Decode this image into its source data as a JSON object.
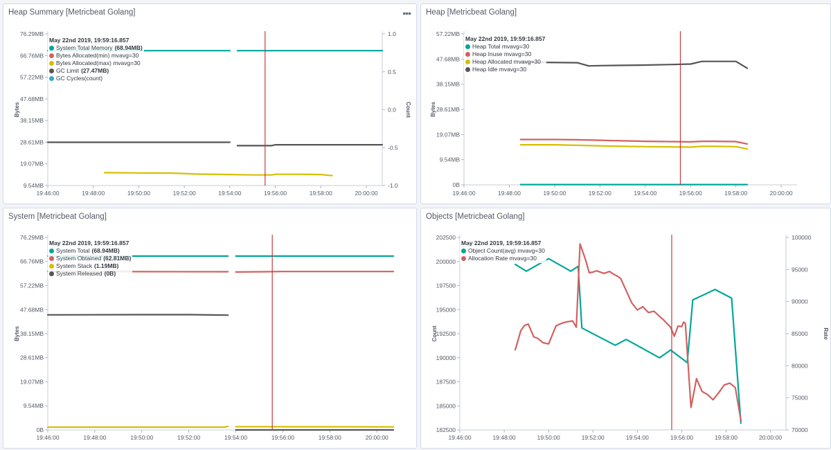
{
  "panels": [
    {
      "title": "Heap Summary [Metricbeat Golang]",
      "menu_icon": "•••",
      "tooltip": {
        "header": "May 22nd 2019, 19:59:16.857",
        "items": [
          {
            "label": "System Total Memory",
            "value": "(68.94MB)",
            "color": "#00a69b"
          },
          {
            "label": "Bytes Allocated(min) mvavg=30",
            "value": "",
            "color": "#d36060"
          },
          {
            "label": "Bytes Allocated(max) mvavg=30",
            "value": "",
            "color": "#d6bf00"
          },
          {
            "label": "GC Limit",
            "value": "(27.47MB)",
            "color": "#555555"
          },
          {
            "label": "GC Cycles(count)",
            "value": "",
            "color": "#2ea9c9"
          }
        ]
      }
    },
    {
      "title": "Heap [Metricbeat Golang]",
      "tooltip": {
        "header": "May 22nd 2019, 19:59:16.857",
        "items": [
          {
            "label": "Heap Total mvavg=30",
            "value": "",
            "color": "#00a69b"
          },
          {
            "label": "Heap Inuse mvavg=30",
            "value": "",
            "color": "#d36060"
          },
          {
            "label": "Heap Allocated mvavg=30",
            "value": "",
            "color": "#d6bf00"
          },
          {
            "label": "Heap Idle mvavg=30",
            "value": "",
            "color": "#555555"
          }
        ]
      }
    },
    {
      "title": "System [Metricbeat Golang]",
      "tooltip": {
        "header": "May 22nd 2019, 19:59:16.857",
        "items": [
          {
            "label": "System Total",
            "value": "(68.94MB)",
            "color": "#00a69b"
          },
          {
            "label": "System Obtained",
            "value": "(62.81MB)",
            "color": "#d36060"
          },
          {
            "label": "System Stack",
            "value": "(1.19MB)",
            "color": "#d6bf00"
          },
          {
            "label": "System Released",
            "value": "(0B)",
            "color": "#555555"
          }
        ]
      }
    },
    {
      "title": "Objects [Metricbeat Golang]",
      "tooltip": {
        "header": "May 22nd 2019, 19:59:16.857",
        "items": [
          {
            "label": "Object Count(avg) mvavg=30",
            "value": "",
            "color": "#00a69b"
          },
          {
            "label": "Allocation Rate mvavg=30",
            "value": "",
            "color": "#d36060"
          }
        ]
      }
    }
  ],
  "chart_data": [
    {
      "type": "line",
      "title": "Heap Summary [Metricbeat Golang]",
      "ylabel": "Bytes",
      "y2label": "Count",
      "x_ticks": [
        "19:46:00",
        "19:48:00",
        "19:50:00",
        "19:52:00",
        "19:54:00",
        "19:56:00",
        "19:58:00",
        "20:00:00"
      ],
      "xlim": [
        "19:46:00",
        "20:00:42"
      ],
      "ylim": [
        9.54,
        76.29
      ],
      "y_ticks": [
        9.54,
        19.07,
        28.61,
        38.15,
        47.68,
        57.22,
        66.76,
        76.29
      ],
      "y_tick_labels": [
        "9.54MB",
        "19.07MB",
        "28.61MB",
        "38.15MB",
        "47.68MB",
        "57.22MB",
        "66.76MB",
        "76.29MB"
      ],
      "y2lim": [
        -1.0,
        1.0
      ],
      "y2_ticks": [
        -1.0,
        -0.5,
        0.0,
        0.5,
        1.0
      ],
      "y2_tick_labels": [
        "-1.0",
        "-0.5",
        "0.0",
        "0.5",
        "1.0"
      ],
      "cursor": "19:55:33",
      "series": [
        {
          "name": "System Total Memory",
          "color": "#00a69b",
          "x": [
            "19:46:00",
            "19:54:00",
            null,
            "19:54:20",
            "20:00:42"
          ],
          "y": [
            68.9,
            68.9,
            null,
            68.9,
            68.9
          ]
        },
        {
          "name": "Bytes Allocated(max) mvavg=30",
          "color": "#d6bf00",
          "x": [
            "19:48:30",
            "19:50:00",
            "19:51:30",
            "19:52:30",
            "19:54:00",
            "19:55:00",
            "19:55:50",
            "19:56:00",
            "19:57:00",
            "19:58:00",
            "19:58:30"
          ],
          "y": [
            15.2,
            15.1,
            15.0,
            14.6,
            14.4,
            14.2,
            14.2,
            14.5,
            14.5,
            14.4,
            13.9
          ]
        },
        {
          "name": "GC Limit",
          "color": "#555555",
          "x": [
            "19:46:00",
            "19:54:00",
            null,
            "19:54:20",
            "19:55:50",
            "19:56:00",
            "20:00:42"
          ],
          "y": [
            28.6,
            28.6,
            null,
            27.1,
            27.1,
            27.5,
            27.5
          ]
        }
      ]
    },
    {
      "type": "line",
      "title": "Heap [Metricbeat Golang]",
      "ylabel": "Bytes",
      "x_ticks": [
        "19:46:00",
        "19:48:00",
        "19:50:00",
        "19:52:00",
        "19:54:00",
        "19:56:00",
        "19:58:00",
        "20:00:00"
      ],
      "xlim": [
        "19:46:00",
        "20:00:42"
      ],
      "ylim": [
        0,
        57.22
      ],
      "y_ticks": [
        0,
        9.54,
        19.07,
        28.61,
        38.15,
        47.68,
        57.22
      ],
      "y_tick_labels": [
        "0B",
        "9.54MB",
        "19.07MB",
        "28.61MB",
        "38.15MB",
        "47.68MB",
        "57.22MB"
      ],
      "cursor": "19:55:33",
      "series": [
        {
          "name": "Heap Total mvavg=30",
          "color": "#00a69b",
          "x": [
            "19:48:30",
            "19:58:30"
          ],
          "y": [
            0.1,
            0.1
          ]
        },
        {
          "name": "Heap Inuse mvavg=30",
          "color": "#d36060",
          "x": [
            "19:48:30",
            "19:50:00",
            "19:51:00",
            "19:52:00",
            "19:53:00",
            "19:54:00",
            "19:55:00",
            "19:56:00",
            "19:56:30",
            "19:57:00",
            "19:58:00",
            "19:58:30"
          ],
          "y": [
            17.2,
            17.2,
            17.1,
            16.9,
            16.7,
            16.5,
            16.4,
            16.3,
            16.5,
            16.5,
            16.4,
            15.5
          ]
        },
        {
          "name": "Heap Allocated mvavg=30",
          "color": "#d6bf00",
          "x": [
            "19:48:30",
            "19:50:00",
            "19:51:00",
            "19:52:00",
            "19:53:00",
            "19:54:00",
            "19:55:00",
            "19:56:00",
            "19:56:30",
            "19:57:00",
            "19:58:00",
            "19:58:30"
          ],
          "y": [
            15.2,
            15.2,
            15.0,
            14.8,
            14.6,
            14.5,
            14.4,
            14.3,
            14.6,
            14.6,
            14.5,
            13.6
          ]
        },
        {
          "name": "Heap Idle mvavg=30",
          "color": "#555555",
          "x": [
            "19:48:30",
            "19:51:00",
            "19:51:30",
            "19:52:00",
            "19:54:00",
            "19:55:00",
            "19:56:00",
            "19:56:30",
            "19:58:00",
            "19:58:30"
          ],
          "y": [
            46.5,
            46.3,
            45.1,
            45.2,
            45.4,
            45.6,
            45.8,
            46.8,
            46.8,
            44.2
          ]
        }
      ]
    },
    {
      "type": "line",
      "title": "System [Metricbeat Golang]",
      "ylabel": "Bytes",
      "x_ticks": [
        "19:46:00",
        "19:48:00",
        "19:50:00",
        "19:52:00",
        "19:54:00",
        "19:56:00",
        "19:58:00",
        "20:00:00"
      ],
      "xlim": [
        "19:46:00",
        "20:00:42"
      ],
      "ylim": [
        0,
        76.29
      ],
      "y_ticks": [
        0,
        9.54,
        19.07,
        28.61,
        38.15,
        47.68,
        57.22,
        66.76,
        76.29
      ],
      "y_tick_labels": [
        "0B",
        "9.54MB",
        "19.07MB",
        "28.61MB",
        "38.15MB",
        "47.68MB",
        "57.22MB",
        "66.76MB",
        "76.29MB"
      ],
      "cursor": "19:55:33",
      "series": [
        {
          "name": "System Total",
          "color": "#00a69b",
          "x": [
            "19:46:00",
            "19:53:40",
            null,
            "19:54:00",
            "20:00:42"
          ],
          "y": [
            68.9,
            68.9,
            null,
            68.9,
            68.9
          ]
        },
        {
          "name": "System Obtained",
          "color": "#d36060",
          "x": [
            "19:46:00",
            "19:53:40",
            null,
            "19:54:00",
            "19:56:00",
            "19:58:00",
            "20:00:42"
          ],
          "y": [
            62.8,
            62.7,
            null,
            62.6,
            62.8,
            62.8,
            62.8
          ]
        },
        {
          "name": "System Stack",
          "color": "#d6bf00",
          "x": [
            "19:46:00",
            "19:53:30",
            "19:53:40",
            null,
            "19:54:00",
            "20:00:42"
          ],
          "y": [
            1.1,
            1.1,
            1.4,
            null,
            1.3,
            1.2
          ]
        },
        {
          "name": "System Released",
          "color": "#555555",
          "x": [
            "19:46:00",
            "19:50:00",
            "19:52:00",
            "19:53:40",
            null,
            "19:54:00",
            "20:00:42"
          ],
          "y": [
            45.6,
            45.7,
            45.7,
            45.5,
            null,
            0,
            0
          ]
        }
      ]
    },
    {
      "type": "line",
      "title": "Objects [Metricbeat Golang]",
      "ylabel": "Count",
      "y2label": "Rate",
      "x_ticks": [
        "19:46:00",
        "19:48:00",
        "19:50:00",
        "19:52:00",
        "19:54:00",
        "19:56:00",
        "19:58:00",
        "20:00:00"
      ],
      "xlim": [
        "19:46:00",
        "20:00:42"
      ],
      "ylim": [
        182500,
        202500
      ],
      "y_ticks": [
        182500,
        185000,
        187500,
        190000,
        192500,
        195000,
        197500,
        200000,
        202500
      ],
      "y_tick_labels": [
        "182500",
        "185000",
        "187500",
        "190000",
        "192500",
        "195000",
        "197500",
        "200000",
        "202500"
      ],
      "y2lim": [
        70000,
        100000
      ],
      "y2_ticks": [
        70000,
        75000,
        80000,
        85000,
        90000,
        95000,
        100000
      ],
      "y2_tick_labels": [
        "70000",
        "75000",
        "80000",
        "85000",
        "90000",
        "95000",
        "100000"
      ],
      "cursor": "19:55:33",
      "series": [
        {
          "name": "Object Count(avg) mvavg=30",
          "axis": "left",
          "color": "#00a69b",
          "x": [
            "19:48:30",
            "19:49:00",
            "19:50:00",
            "19:51:00",
            "19:51:20",
            "19:51:30",
            "19:53:00",
            "19:53:30",
            "19:55:00",
            "19:55:30",
            "19:56:15",
            "19:56:30",
            "19:57:30",
            "19:58:15",
            "19:58:40"
          ],
          "y": [
            199700,
            199000,
            200300,
            199000,
            199500,
            193100,
            191300,
            191900,
            190000,
            190800,
            189500,
            196000,
            197100,
            196200,
            183200
          ]
        },
        {
          "name": "Allocation Rate mvavg=30",
          "axis": "right",
          "color": "#d36060",
          "x": [
            "19:48:30",
            "19:48:45",
            "19:48:55",
            "19:49:05",
            "19:49:20",
            "19:49:30",
            "19:49:45",
            "19:50:00",
            "19:50:20",
            "19:50:30",
            "19:50:45",
            "19:51:05",
            "19:51:15",
            "19:51:25",
            "19:51:40",
            "19:51:50",
            "19:52:00",
            "19:52:10",
            "19:52:30",
            "19:52:45",
            "19:52:55",
            "19:53:05",
            "19:53:15",
            "19:53:30",
            "19:53:45",
            "19:54:00",
            "19:54:15",
            "19:54:30",
            "19:54:45",
            "19:55:00",
            "19:55:10",
            "19:55:20",
            "19:55:30",
            "19:55:40",
            "19:55:50",
            "19:56:00",
            "19:56:05",
            "19:56:10",
            "19:56:25",
            "19:56:40",
            "19:56:55",
            "19:57:10",
            "19:57:25",
            "19:57:40",
            "19:57:55",
            "19:58:10",
            "19:58:25",
            "19:58:40"
          ],
          "y": [
            82500,
            85500,
            86300,
            86500,
            84500,
            84300,
            83600,
            83400,
            86200,
            86500,
            86800,
            87000,
            86000,
            99000,
            96500,
            94500,
            94600,
            94800,
            94400,
            94700,
            94300,
            94000,
            93600,
            91700,
            89800,
            88700,
            89200,
            88300,
            88500,
            87700,
            87200,
            86600,
            86000,
            84600,
            86200,
            86100,
            86800,
            86600,
            73500,
            78000,
            76000,
            75500,
            74700,
            75800,
            77000,
            77300,
            76600,
            71500
          ]
        }
      ]
    }
  ]
}
